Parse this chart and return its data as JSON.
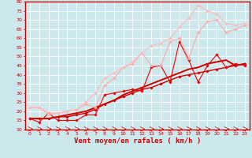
{
  "xlabel": "Vent moyen/en rafales ( km/h )",
  "xlim": [
    -0.5,
    23.5
  ],
  "ylim": [
    10,
    80
  ],
  "xticks": [
    0,
    1,
    2,
    3,
    4,
    5,
    6,
    7,
    8,
    9,
    10,
    11,
    12,
    13,
    14,
    15,
    16,
    17,
    18,
    19,
    20,
    21,
    22,
    23
  ],
  "yticks": [
    10,
    15,
    20,
    25,
    30,
    35,
    40,
    45,
    50,
    55,
    60,
    65,
    70,
    75,
    80
  ],
  "bg_color": "#cce8ec",
  "grid_color": "#ffffff",
  "axis_color": "#cc0000",
  "label_color": "#cc0000",
  "lines": [
    {
      "x": [
        0,
        1,
        2,
        3,
        4,
        5,
        6,
        7,
        8,
        9,
        10,
        11,
        12,
        13,
        14,
        15,
        16,
        17,
        18,
        19,
        20,
        21,
        22,
        23
      ],
      "y": [
        16,
        16,
        16,
        17,
        17,
        18,
        19,
        21,
        24,
        26,
        28,
        30,
        32,
        33,
        35,
        37,
        39,
        40,
        41,
        42,
        43,
        44,
        45,
        46
      ],
      "color": "#cc0000",
      "lw": 1.0,
      "marker": "D",
      "ms": 1.8
    },
    {
      "x": [
        0,
        1,
        2,
        3,
        4,
        5,
        6,
        7,
        8,
        9,
        10,
        11,
        12,
        13,
        14,
        15,
        16,
        17,
        18,
        19,
        20,
        21,
        22,
        23
      ],
      "y": [
        16,
        14,
        19,
        15,
        15,
        15,
        18,
        18,
        29,
        30,
        31,
        32,
        31,
        44,
        45,
        36,
        58,
        48,
        36,
        45,
        51,
        44,
        46,
        45
      ],
      "color": "#ee0000",
      "lw": 0.8,
      "marker": "D",
      "ms": 1.8
    },
    {
      "x": [
        0,
        1,
        2,
        3,
        4,
        5,
        6,
        7,
        8,
        9,
        10,
        11,
        12,
        13,
        14,
        15,
        16,
        17,
        18,
        19,
        20,
        21,
        22,
        23
      ],
      "y": [
        22,
        22,
        19,
        19,
        20,
        21,
        24,
        22,
        34,
        38,
        44,
        46,
        52,
        45,
        45,
        58,
        60,
        49,
        63,
        69,
        70,
        63,
        65,
        67
      ],
      "color": "#ffaaaa",
      "lw": 0.8,
      "marker": "D",
      "ms": 1.8
    },
    {
      "x": [
        0,
        1,
        2,
        3,
        4,
        5,
        6,
        7,
        8,
        9,
        10,
        11,
        12,
        13,
        14,
        15,
        16,
        17,
        18,
        19,
        20,
        21,
        22,
        23
      ],
      "y": [
        22,
        22,
        18,
        19,
        20,
        21,
        25,
        30,
        38,
        41,
        44,
        47,
        52,
        56,
        57,
        60,
        66,
        71,
        78,
        75,
        73,
        68,
        67,
        68
      ],
      "color": "#ffbbbb",
      "lw": 0.8,
      "marker": "D",
      "ms": 1.8
    },
    {
      "x": [
        0,
        1,
        2,
        3,
        4,
        5,
        6,
        7,
        8,
        9,
        10,
        11,
        12,
        13,
        14,
        15,
        16,
        17,
        18,
        19,
        20,
        21,
        22,
        23
      ],
      "y": [
        16,
        16,
        16,
        17,
        18,
        19,
        20,
        22,
        24,
        26,
        29,
        31,
        33,
        35,
        37,
        39,
        41,
        43,
        44,
        46,
        47,
        48,
        45,
        46
      ],
      "color": "#cc0000",
      "lw": 1.4,
      "marker": null,
      "ms": 0
    }
  ]
}
